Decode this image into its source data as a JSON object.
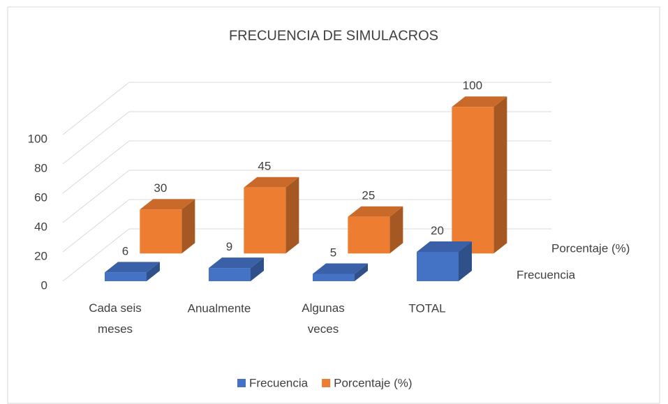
{
  "chart_data": {
    "type": "bar3d",
    "title": "FRECUENCIA DE SIMULACROS",
    "categories": [
      "Cada seis meses",
      "Anualmente",
      "Algunas veces",
      "TOTAL"
    ],
    "series": [
      {
        "name": "Frecuencia",
        "color": "#4472c4",
        "values": [
          6,
          9,
          5,
          20
        ]
      },
      {
        "name": "Porcentaje (%)",
        "color": "#ed7d31",
        "values": [
          30,
          45,
          25,
          100
        ]
      }
    ],
    "ylim": [
      0,
      100
    ],
    "yticks": [
      0,
      20,
      40,
      60,
      80,
      100
    ],
    "grid": true,
    "legend": "bottom"
  }
}
